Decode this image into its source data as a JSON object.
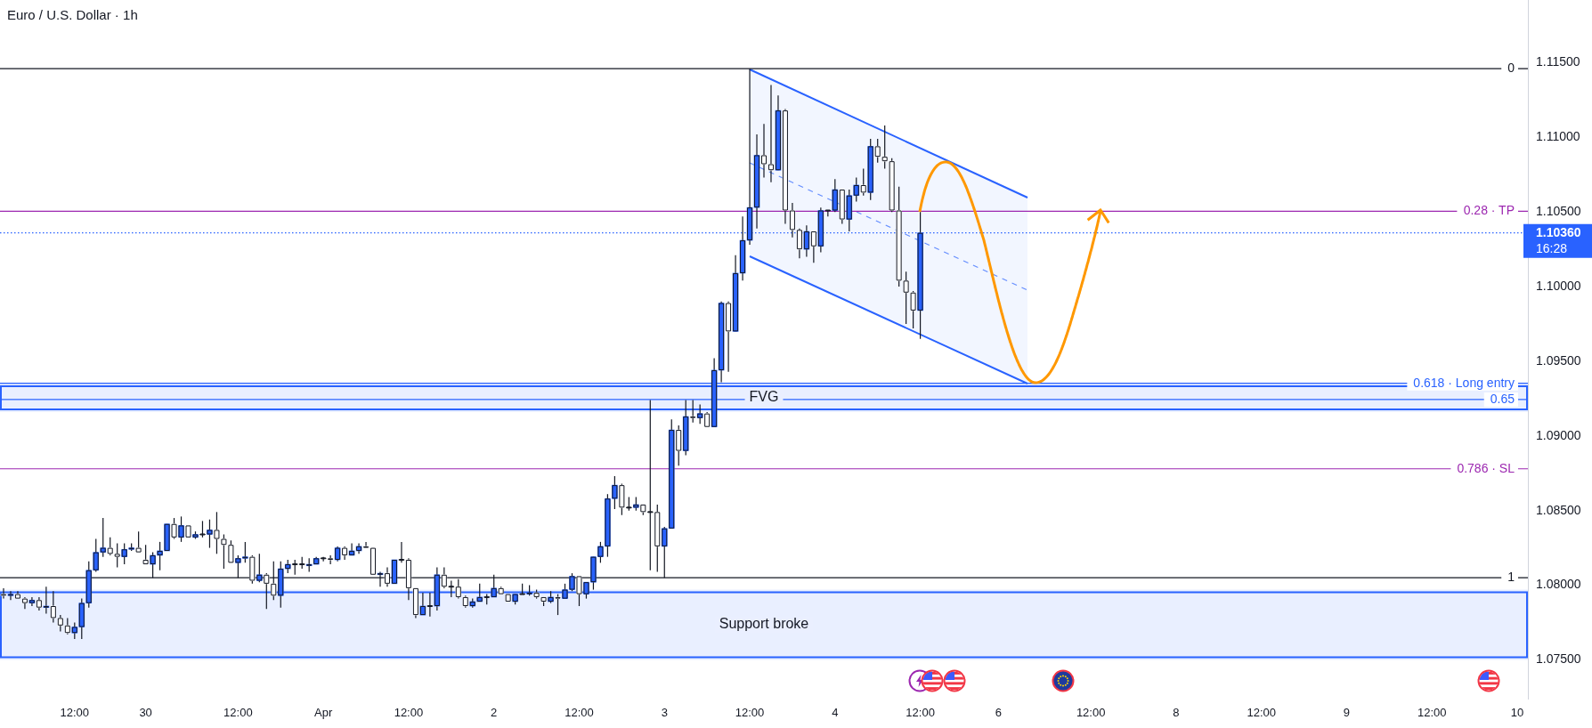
{
  "chart_data": {
    "type": "candlestick",
    "title": "Euro / U.S. Dollar · 1h",
    "categories": [
      null,
      null,
      null,
      null,
      null,
      null,
      null,
      null,
      null,
      null,
      "12:00",
      null,
      null,
      null,
      null,
      null,
      null,
      null,
      null,
      null,
      "30",
      null,
      null,
      null,
      null,
      null,
      null,
      null,
      null,
      null,
      null,
      null,
      null,
      "12:00",
      null,
      null,
      null,
      null,
      null,
      null,
      null,
      null,
      null,
      null,
      null,
      "Apr",
      null,
      null,
      null,
      null,
      null,
      null,
      null,
      null,
      null,
      null,
      null,
      "12:00",
      null,
      null,
      null,
      null,
      null,
      null,
      null,
      null,
      null,
      null,
      null,
      "2",
      null,
      null,
      null,
      null,
      null,
      null,
      null,
      null,
      null,
      null,
      null,
      "12:00",
      null,
      null,
      null,
      null,
      null,
      null,
      null,
      null,
      null,
      null,
      null,
      "3",
      null,
      null,
      null,
      null,
      null,
      null,
      null,
      null,
      null,
      null,
      null,
      "12:00",
      null,
      null,
      null,
      null,
      null,
      null,
      null,
      null,
      null,
      null,
      null,
      "4",
      null,
      null,
      null,
      null,
      null,
      null,
      null,
      null,
      null,
      null,
      null,
      "12:00",
      null,
      null,
      null,
      null,
      null,
      null,
      null,
      null,
      null,
      null,
      "6",
      null,
      null,
      null,
      null,
      null,
      null,
      null,
      null,
      null,
      null,
      null,
      null,
      "12:00",
      null,
      null,
      null,
      null,
      null,
      null,
      null,
      null,
      null,
      null,
      null,
      "8",
      null,
      null,
      null,
      null,
      null,
      null,
      null,
      null,
      null,
      null,
      null,
      "12:00",
      null,
      null,
      null,
      null,
      null,
      null,
      null,
      null,
      null,
      null,
      null,
      "9",
      null,
      null,
      null,
      null,
      null,
      null,
      null,
      null,
      null,
      null,
      null,
      "12:00",
      null,
      null,
      null,
      null,
      null,
      null,
      null,
      null,
      null,
      null,
      null,
      "10",
      null
    ],
    "ohlc": [
      [
        1.0794,
        1.0798,
        1.0791,
        1.0793
      ],
      [
        1.0793,
        1.0796,
        1.079,
        1.0794
      ],
      [
        1.0794,
        1.0796,
        1.0791,
        1.0791
      ],
      [
        1.0791,
        1.0792,
        1.0784,
        1.0788
      ],
      [
        1.0788,
        1.0792,
        1.0786,
        1.079
      ],
      [
        1.079,
        1.0792,
        1.0783,
        1.0785
      ],
      [
        1.0785,
        1.0799,
        1.0781,
        1.0786
      ],
      [
        1.0786,
        1.0796,
        1.0775,
        1.0778
      ],
      [
        1.0778,
        1.078,
        1.0769,
        1.0773
      ],
      [
        1.0773,
        1.0778,
        1.0767,
        1.0768
      ],
      [
        1.0768,
        1.0775,
        1.0764,
        1.0772
      ],
      [
        1.0772,
        1.0791,
        1.0764,
        1.0788
      ],
      [
        1.0788,
        1.0816,
        1.0785,
        1.081
      ],
      [
        1.081,
        1.0831,
        1.0809,
        1.0822
      ],
      [
        1.0822,
        1.0845,
        1.0819,
        1.0825
      ],
      [
        1.0825,
        1.0832,
        1.082,
        1.0821
      ],
      [
        1.0821,
        1.0828,
        1.0812,
        1.0819
      ],
      [
        1.0819,
        1.0828,
        1.0814,
        1.0824
      ],
      [
        1.0824,
        1.0828,
        1.0823,
        1.0825
      ],
      [
        1.0825,
        1.0836,
        1.0822,
        1.0822
      ],
      [
        1.0817,
        1.0827,
        1.0814,
        1.0814
      ],
      [
        1.0814,
        1.0822,
        1.0805,
        1.082
      ],
      [
        1.082,
        1.0829,
        1.081,
        1.0823
      ],
      [
        1.0823,
        1.0841,
        1.0823,
        1.0841
      ],
      [
        1.0841,
        1.0845,
        1.0831,
        1.0832
      ],
      [
        1.0832,
        1.0846,
        1.0829,
        1.084
      ],
      [
        1.084,
        1.084,
        1.0832,
        1.0832
      ],
      [
        1.0832,
        1.0836,
        1.0831,
        1.0834
      ],
      [
        1.0834,
        1.0843,
        1.0832,
        1.0834
      ],
      [
        1.0834,
        1.0844,
        1.0825,
        1.0837
      ],
      [
        1.0837,
        1.0849,
        1.0821,
        1.0831
      ],
      [
        1.0831,
        1.0834,
        1.0811,
        1.0827
      ],
      [
        1.0827,
        1.083,
        1.0815,
        1.0815
      ],
      [
        1.0815,
        1.082,
        1.0805,
        1.0818
      ],
      [
        1.0818,
        1.0829,
        1.0815,
        1.0819
      ],
      [
        1.0819,
        1.082,
        1.0801,
        1.0803
      ],
      [
        1.0803,
        1.0821,
        1.0802,
        1.0807
      ],
      [
        1.0807,
        1.0808,
        1.0784,
        1.0801
      ],
      [
        1.0801,
        1.0816,
        1.079,
        1.0793
      ],
      [
        1.0793,
        1.0816,
        1.0785,
        1.0811
      ],
      [
        1.0811,
        1.0817,
        1.0808,
        1.0814
      ],
      [
        1.0814,
        1.0817,
        1.0807,
        1.0814
      ],
      [
        1.0814,
        1.0819,
        1.0811,
        1.0814
      ],
      [
        1.0813,
        1.0818,
        1.0809,
        1.0814
      ],
      [
        1.0814,
        1.0819,
        1.0814,
        1.0818
      ],
      [
        1.0818,
        1.0819,
        1.0816,
        1.0818
      ],
      [
        1.0818,
        1.082,
        1.0814,
        1.0817
      ],
      [
        1.0817,
        1.0826,
        1.0816,
        1.0825
      ],
      [
        1.0825,
        1.0826,
        1.0817,
        1.082
      ],
      [
        1.082,
        1.0828,
        1.082,
        1.0823
      ],
      [
        1.0823,
        1.0828,
        1.0821,
        1.0826
      ],
      [
        1.0826,
        1.0829,
        1.0825,
        1.0825
      ],
      [
        1.0825,
        1.0825,
        1.0807,
        1.0807
      ],
      [
        1.0807,
        1.0809,
        1.0799,
        1.0808
      ],
      [
        1.0808,
        1.0812,
        1.0799,
        1.0801
      ],
      [
        1.0801,
        1.0817,
        1.0801,
        1.0817
      ],
      [
        1.0817,
        1.0829,
        1.0815,
        1.0817
      ],
      [
        1.0817,
        1.0818,
        1.079,
        1.0798
      ],
      [
        1.0798,
        1.0798,
        1.0778,
        1.078
      ],
      [
        1.078,
        1.0795,
        1.078,
        1.0786
      ],
      [
        1.0786,
        1.0795,
        1.0779,
        1.0786
      ],
      [
        1.0786,
        1.0812,
        1.0783,
        1.0807
      ],
      [
        1.0807,
        1.0812,
        1.0798,
        1.0799
      ],
      [
        1.0799,
        1.0803,
        1.0792,
        1.0799
      ],
      [
        1.0799,
        1.0804,
        1.0791,
        1.0792
      ],
      [
        1.0792,
        1.0793,
        1.0785,
        1.0786
      ],
      [
        1.0786,
        1.0791,
        1.0785,
        1.0789
      ],
      [
        1.0789,
        1.0801,
        1.0789,
        1.0792
      ],
      [
        1.0792,
        1.0794,
        1.0787,
        1.0792
      ],
      [
        1.0792,
        1.0807,
        1.0792,
        1.0798
      ],
      [
        1.0798,
        1.0799,
        1.0794,
        1.0794
      ],
      [
        1.0794,
        1.0794,
        1.0789,
        1.0789
      ],
      [
        1.0789,
        1.0794,
        1.0787,
        1.0794
      ],
      [
        1.0794,
        1.0801,
        1.0794,
        1.0794
      ],
      [
        1.0794,
        1.08,
        1.0793,
        1.0795
      ],
      [
        1.0795,
        1.0797,
        1.0791,
        1.0792
      ],
      [
        1.0792,
        1.0792,
        1.0786,
        1.0789
      ],
      [
        1.0789,
        1.0796,
        1.0788,
        1.0792
      ],
      [
        1.0792,
        1.0794,
        1.078,
        1.0791
      ],
      [
        1.0791,
        1.0801,
        1.0791,
        1.0797
      ],
      [
        1.0797,
        1.0808,
        1.0796,
        1.0806
      ],
      [
        1.0806,
        1.0806,
        1.0786,
        1.0794
      ],
      [
        1.0794,
        1.0802,
        1.0791,
        1.0802
      ],
      [
        1.0802,
        1.0819,
        1.0797,
        1.0819
      ],
      [
        1.0819,
        1.0829,
        1.0815,
        1.0826
      ],
      [
        1.0826,
        1.0861,
        1.0819,
        1.0858
      ],
      [
        1.0858,
        1.0873,
        1.0851,
        1.0867
      ],
      [
        1.0867,
        1.0868,
        1.0847,
        1.0852
      ],
      [
        1.0852,
        1.0859,
        1.085,
        1.0852
      ],
      [
        1.0852,
        1.0859,
        1.085,
        1.0854
      ],
      [
        1.0854,
        1.0854,
        1.0847,
        1.0849
      ],
      [
        1.0849,
        1.0924,
        1.081,
        1.0849
      ],
      [
        1.0849,
        1.0854,
        1.0809,
        1.0826
      ],
      [
        1.0826,
        1.0839,
        1.0805,
        1.0838
      ],
      [
        1.0838,
        1.0911,
        1.0838,
        1.0904
      ],
      [
        1.0904,
        1.0907,
        1.088,
        1.089
      ],
      [
        1.089,
        1.0924,
        1.0887,
        1.0913
      ],
      [
        1.0913,
        1.0924,
        1.0909,
        1.0912
      ],
      [
        1.0912,
        1.0921,
        1.0908,
        1.0915
      ],
      [
        1.0915,
        1.0916,
        1.0906,
        1.0906
      ],
      [
        1.0906,
        1.0952,
        1.0906,
        1.0944
      ],
      [
        1.0944,
        1.099,
        1.0936,
        1.0989
      ],
      [
        1.0989,
        1.099,
        1.0943,
        1.097
      ],
      [
        1.097,
        1.1021,
        1.097,
        1.1009
      ],
      [
        1.1009,
        1.1047,
        1.1004,
        1.1031
      ],
      [
        1.1031,
        1.1146,
        1.1028,
        1.1053
      ],
      [
        1.1053,
        1.1102,
        1.1039,
        1.1088
      ],
      [
        1.1088,
        1.1109,
        1.1073,
        1.1082
      ],
      [
        1.1082,
        1.1135,
        1.107,
        1.1078
      ],
      [
        1.1078,
        1.1128,
        1.1078,
        1.1118
      ],
      [
        1.1118,
        1.1119,
        1.1042,
        1.1051
      ],
      [
        1.1051,
        1.1056,
        1.1033,
        1.1038
      ],
      [
        1.1038,
        1.1039,
        1.1019,
        1.1025
      ],
      [
        1.1025,
        1.1041,
        1.102,
        1.1037
      ],
      [
        1.1037,
        1.1037,
        1.1016,
        1.1027
      ],
      [
        1.1027,
        1.1053,
        1.1023,
        1.1051
      ],
      [
        1.1051,
        1.1051,
        1.1047,
        1.1051
      ],
      [
        1.1051,
        1.1072,
        1.105,
        1.1065
      ],
      [
        1.1065,
        1.1065,
        1.1042,
        1.1045
      ],
      [
        1.1045,
        1.1065,
        1.1037,
        1.1061
      ],
      [
        1.1061,
        1.1073,
        1.1057,
        1.1068
      ],
      [
        1.1068,
        1.1079,
        1.1061,
        1.1063
      ],
      [
        1.1063,
        1.1099,
        1.1058,
        1.1094
      ],
      [
        1.1094,
        1.1099,
        1.1083,
        1.1087
      ],
      [
        1.1087,
        1.1108,
        1.1079,
        1.1084
      ],
      [
        1.1084,
        1.1086,
        1.105,
        1.1051
      ],
      [
        1.1051,
        1.1067,
        1.1,
        1.1004
      ],
      [
        1.1004,
        1.101,
        1.0975,
        1.0996
      ],
      [
        1.0996,
        1.0997,
        1.0972,
        1.0984
      ],
      [
        1.0984,
        1.105,
        1.0965,
        1.1036
      ],
      null,
      null,
      null,
      null,
      null,
      null,
      null,
      null,
      null,
      null,
      null,
      null,
      null,
      null,
      null,
      null,
      null,
      null,
      null,
      null,
      null,
      null,
      null,
      null,
      null,
      null,
      null,
      null,
      null,
      null,
      null,
      null,
      null,
      null,
      null,
      null,
      null,
      null,
      null,
      null,
      null,
      null,
      null,
      null,
      null,
      null,
      null,
      null,
      null,
      null,
      null,
      null,
      null,
      null,
      null,
      null,
      null,
      null,
      null,
      null,
      null,
      null,
      null,
      null,
      null,
      null,
      null,
      null,
      null,
      null,
      null,
      null,
      null,
      null,
      null,
      null,
      null,
      null,
      null,
      null,
      null,
      null,
      null,
      null,
      null
    ],
    "colors": [
      "#ffffff",
      "#2962ff",
      "#ffffff",
      "#ffffff",
      "#2962ff",
      "#ffffff",
      "#2962ff",
      "#ffffff",
      "#ffffff",
      "#ffffff",
      "#2962ff",
      "#2962ff",
      "#2962ff",
      "#2962ff",
      "#2962ff",
      "#ffffff",
      "#ffffff",
      "#2962ff",
      "#2962ff",
      "#ffffff",
      "#ffffff",
      "#2962ff",
      "#2962ff",
      "#2962ff",
      "#ffffff",
      "#2962ff",
      "#ffffff",
      "#2962ff",
      "#131722",
      "#2962ff",
      "#ffffff",
      "#ffffff",
      "#ffffff",
      "#2962ff",
      "#2962ff",
      "#ffffff",
      "#2962ff",
      "#ffffff",
      "#ffffff",
      "#2962ff",
      "#2962ff",
      "#131722",
      "#131722",
      "#2962ff",
      "#2962ff",
      "#131722",
      "#ffffff",
      "#2962ff",
      "#ffffff",
      "#2962ff",
      "#2962ff",
      "#ffffff",
      "#ffffff",
      "#2962ff",
      "#ffffff",
      "#2962ff",
      "#131722",
      "#ffffff",
      "#ffffff",
      "#2962ff",
      "#131722",
      "#2962ff",
      "#ffffff",
      "#131722",
      "#ffffff",
      "#ffffff",
      "#2962ff",
      "#2962ff",
      "#131722",
      "#2962ff",
      "#ffffff",
      "#ffffff",
      "#2962ff",
      "#131722",
      "#2962ff",
      "#ffffff",
      "#ffffff",
      "#2962ff",
      "#ffffff",
      "#2962ff",
      "#2962ff",
      "#ffffff",
      "#2962ff",
      "#2962ff",
      "#2962ff",
      "#2962ff",
      "#2962ff",
      "#ffffff",
      "#131722",
      "#2962ff",
      "#ffffff",
      "#131722",
      "#ffffff",
      "#2962ff",
      "#2962ff",
      "#ffffff",
      "#2962ff",
      "#ffffff",
      "#2962ff",
      "#ffffff",
      "#2962ff",
      "#2962ff",
      "#ffffff",
      "#2962ff",
      "#2962ff",
      "#2962ff",
      "#2962ff",
      "#ffffff",
      "#ffffff",
      "#2962ff",
      "#ffffff",
      "#ffffff",
      "#ffffff",
      "#2962ff",
      "#ffffff",
      "#2962ff",
      "#131722",
      "#2962ff",
      "#ffffff",
      "#2962ff",
      "#2962ff",
      "#ffffff",
      "#2962ff",
      "#ffffff",
      "#ffffff",
      "#ffffff",
      "#ffffff",
      "#ffffff",
      "#ffffff",
      "#2962ff",
      null,
      null,
      null,
      null,
      null,
      null,
      null,
      null,
      null,
      null,
      null,
      null,
      null,
      null,
      null,
      null,
      null,
      null,
      null,
      null,
      null,
      null,
      null,
      null,
      null,
      null,
      null,
      null,
      null,
      null,
      null,
      null,
      null,
      null,
      null,
      null,
      null,
      null,
      null,
      null,
      null,
      null,
      null,
      null,
      null,
      null,
      null,
      null,
      null,
      null,
      null,
      null,
      null,
      null,
      null,
      null,
      null,
      null,
      null,
      null,
      null,
      null,
      null,
      null,
      null,
      null,
      null,
      null,
      null,
      null,
      null,
      null,
      null,
      null,
      null,
      null,
      null,
      null,
      null,
      null,
      null,
      null,
      null,
      null,
      null
    ],
    "ylim": [
      1.0724,
      1.1192
    ],
    "yticks": [
      {
        "value": 1.075,
        "label": "1.07500"
      },
      {
        "value": 1.08,
        "label": "1.08000"
      },
      {
        "value": 1.085,
        "label": "1.08500"
      },
      {
        "value": 1.09,
        "label": "1.09000"
      },
      {
        "value": 1.095,
        "label": "1.09500"
      },
      {
        "value": 1.1,
        "label": "1.10000"
      },
      {
        "value": 1.105,
        "label": "1.10500"
      },
      {
        "value": 1.11,
        "label": "1.11000"
      },
      {
        "value": 1.115,
        "label": "1.11500"
      }
    ],
    "y2lim": [
      1.2375,
      -0.1349
    ],
    "ref_lines": [
      {
        "axis": "y2",
        "value": 0,
        "label": "0",
        "color": "#131722",
        "line_style": "solid"
      },
      {
        "axis": "y2",
        "value": 0.28,
        "label": "0.28 · TP",
        "color": "#9c27b0",
        "line_style": "solid"
      },
      {
        "axis": "y2",
        "value": 0.618,
        "label": "0.618 · Long entry",
        "color": "#2962ff",
        "line_style": "solid"
      },
      {
        "axis": "y2",
        "value": 0.65,
        "label": "0.65",
        "color": "#2962ff",
        "line_style": "solid"
      },
      {
        "axis": "y2",
        "value": 0.786,
        "label": "0.786 · SL",
        "color": "#9c27b0",
        "line_style": "solid"
      },
      {
        "axis": "y2",
        "value": 1,
        "label": "1",
        "color": "#131722",
        "line_style": "solid"
      },
      {
        "axis": "y",
        "value": 1.1036,
        "label": "1.10360\n16:28",
        "color": "#2962ff",
        "line_style": "dotted"
      }
    ],
    "bands": [
      {
        "axis": "y",
        "from": 1.075,
        "to": 1.0797,
        "label": "Support broke",
        "color": "#2962ff"
      },
      {
        "axis": "y",
        "from": 1.0916,
        "to": 1.0935,
        "label": "FVG",
        "color": "#2962ff"
      }
    ]
  }
}
